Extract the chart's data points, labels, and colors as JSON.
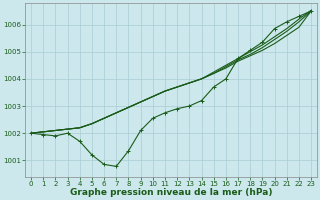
{
  "background_color": "#cce8ec",
  "grid_color": "#aaccd4",
  "line_color": "#1a5c1a",
  "xlabel": "Graphe pression niveau de la mer (hPa)",
  "xlabel_fontsize": 6.5,
  "ylabel_fontsize": 5.5,
  "tick_fontsize": 5.0,
  "xlim": [
    -0.5,
    23.5
  ],
  "ylim": [
    1000.4,
    1006.8
  ],
  "yticks": [
    1001,
    1002,
    1003,
    1004,
    1005,
    1006
  ],
  "xticks": [
    0,
    1,
    2,
    3,
    4,
    5,
    6,
    7,
    8,
    9,
    10,
    11,
    12,
    13,
    14,
    15,
    16,
    17,
    18,
    19,
    20,
    21,
    22,
    23
  ],
  "line_straight1": [
    1002.0,
    1002.05,
    1002.1,
    1002.15,
    1002.2,
    1002.35,
    1002.55,
    1002.75,
    1002.95,
    1003.15,
    1003.35,
    1003.55,
    1003.7,
    1003.85,
    1004.0,
    1004.2,
    1004.4,
    1004.65,
    1004.85,
    1005.05,
    1005.3,
    1005.6,
    1005.9,
    1006.5
  ],
  "line_straight2": [
    1002.0,
    1002.05,
    1002.1,
    1002.15,
    1002.2,
    1002.35,
    1002.55,
    1002.75,
    1002.95,
    1003.15,
    1003.35,
    1003.55,
    1003.7,
    1003.85,
    1004.0,
    1004.2,
    1004.45,
    1004.7,
    1004.9,
    1005.15,
    1005.45,
    1005.75,
    1006.1,
    1006.5
  ],
  "line_straight3": [
    1002.0,
    1002.05,
    1002.1,
    1002.15,
    1002.2,
    1002.35,
    1002.55,
    1002.75,
    1002.95,
    1003.15,
    1003.35,
    1003.55,
    1003.7,
    1003.85,
    1004.0,
    1004.25,
    1004.5,
    1004.75,
    1005.0,
    1005.25,
    1005.55,
    1005.85,
    1006.2,
    1006.52
  ],
  "line_curve": [
    1002.0,
    1001.95,
    1001.9,
    1002.0,
    1001.7,
    1001.2,
    1000.85,
    1000.78,
    1001.35,
    1002.1,
    1002.55,
    1002.75,
    1002.9,
    1003.0,
    1003.2,
    1003.7,
    1004.0,
    1004.75,
    1005.05,
    1005.35,
    1005.85,
    1006.1,
    1006.3,
    1006.5
  ]
}
